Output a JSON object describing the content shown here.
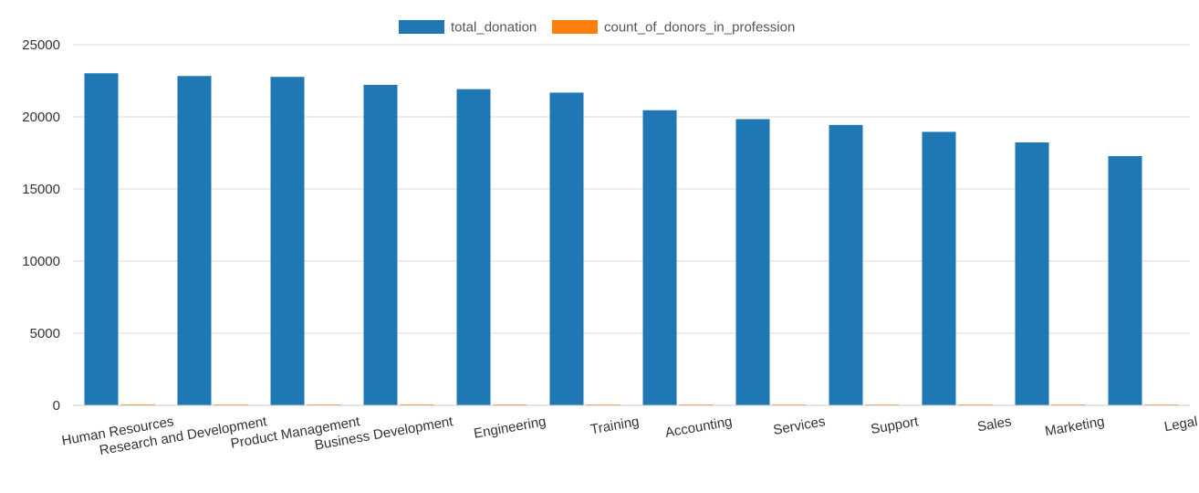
{
  "chart_data": {
    "type": "bar",
    "title": "",
    "xlabel": "",
    "ylabel": "",
    "ylim": [
      0,
      25000
    ],
    "yticks": [
      0,
      5000,
      10000,
      15000,
      20000,
      25000
    ],
    "grid": true,
    "legend_position": "top-center",
    "categories": [
      "Human Resources",
      "Research and Development",
      "Product Management",
      "Business Development",
      "Engineering",
      "Training",
      "Accounting",
      "Services",
      "Support",
      "Sales",
      "Marketing",
      "Legal"
    ],
    "series": [
      {
        "name": "total_donation",
        "color": "#1f77b4",
        "values": [
          23020,
          22830,
          22770,
          22220,
          21920,
          21680,
          20460,
          19840,
          19440,
          18960,
          18230,
          17280
        ]
      },
      {
        "name": "count_of_donors_in_profession",
        "color": "#ff7f0e",
        "values": [
          72,
          64,
          65,
          70,
          66,
          64,
          60,
          57,
          59,
          55,
          51,
          48
        ]
      }
    ]
  }
}
